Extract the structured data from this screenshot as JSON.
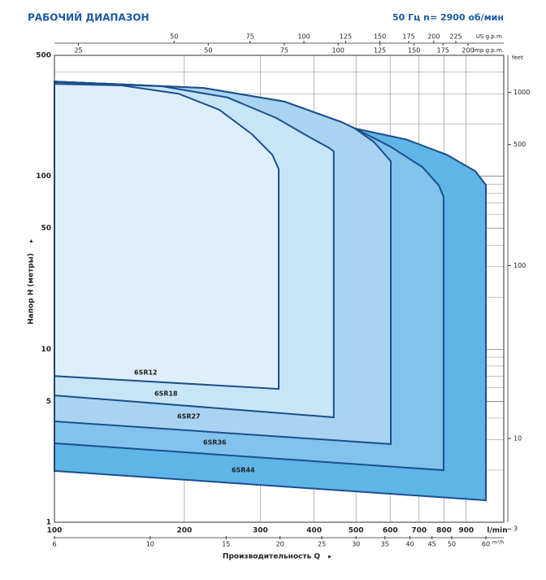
{
  "chart_data": {
    "type": "range",
    "title": "РАБОЧИЙ ДИАПАЗОН",
    "subtitle": "50 Гц   n= 2900 об/мин",
    "x_label": "Производительность Q",
    "y_label": "Напор H (метры)",
    "x_log": true,
    "y_log": true,
    "grid": true,
    "xlim": [
      100,
      1100
    ],
    "xticks": [
      100,
      200,
      300,
      400,
      500,
      600,
      700,
      800,
      900
    ],
    "x_unit": "l/min",
    "ylim": [
      1,
      500
    ],
    "yticks": [
      1,
      5,
      10,
      50,
      100,
      500
    ],
    "yminor": [
      2,
      3,
      4,
      6,
      7,
      8,
      9,
      20,
      30,
      40,
      60,
      70,
      80,
      90,
      200,
      300,
      400
    ],
    "x2lim": [
      6,
      66
    ],
    "x2ticks": [
      6,
      10,
      15,
      20,
      25,
      30,
      35,
      40,
      45,
      50,
      60
    ],
    "x2_unit": "m³/h",
    "x3lim": [
      26.4,
      290.6
    ],
    "x3ticks": [
      50,
      75,
      100,
      125,
      150,
      175,
      200,
      225
    ],
    "x3_unit": "US g.p.m.",
    "x4lim": [
      22,
      242
    ],
    "x4ticks": [
      25,
      50,
      75,
      100,
      125,
      150,
      175,
      200
    ],
    "x4_unit": "imp g.p.m.",
    "y2lim": [
      3.28,
      1640
    ],
    "y2ticks": [
      3,
      10,
      100,
      500,
      1000
    ],
    "y2_unit": "feet",
    "series": [
      {
        "name": "6SR12",
        "color": "#deeffb",
        "x": [
          100,
          143,
          194,
          241,
          287,
          320,
          331,
          331,
          100
        ],
        "values": [
          342,
          335,
          300,
          242,
          175,
          133,
          110,
          5.9,
          7.0
        ]
      },
      {
        "name": "6SR18",
        "color": "#c8e4f7",
        "x": [
          100,
          178,
          252,
          327,
          389,
          433,
          444,
          444,
          100
        ],
        "values": [
          350,
          331,
          285,
          217,
          169,
          146,
          139,
          4.04,
          5.41
        ]
      },
      {
        "name": "6SR27",
        "color": "#a9d4f1",
        "x": [
          100,
          221,
          341,
          462,
          497,
          550,
          602,
          602,
          100
        ],
        "values": [
          353,
          324,
          270,
          206,
          189,
          158,
          122,
          2.83,
          3.83
        ]
      },
      {
        "name": "6SR36",
        "color": "#82c2ed",
        "x": [
          100,
          221,
          341,
          462,
          497,
          599,
          713,
          778,
          798,
          798,
          100
        ],
        "values": [
          353,
          324,
          270,
          206,
          189,
          149,
          113,
          88.5,
          76,
          2.0,
          2.86
        ]
      },
      {
        "name": "6SR44",
        "color": "#5fb4e8",
        "x": [
          100,
          221,
          341,
          462,
          497,
          654,
          812,
          945,
          1000,
          1000,
          100
        ],
        "values": [
          353,
          324,
          270,
          206,
          189,
          163,
          133,
          107,
          89,
          1.34,
          1.98
        ]
      }
    ]
  }
}
